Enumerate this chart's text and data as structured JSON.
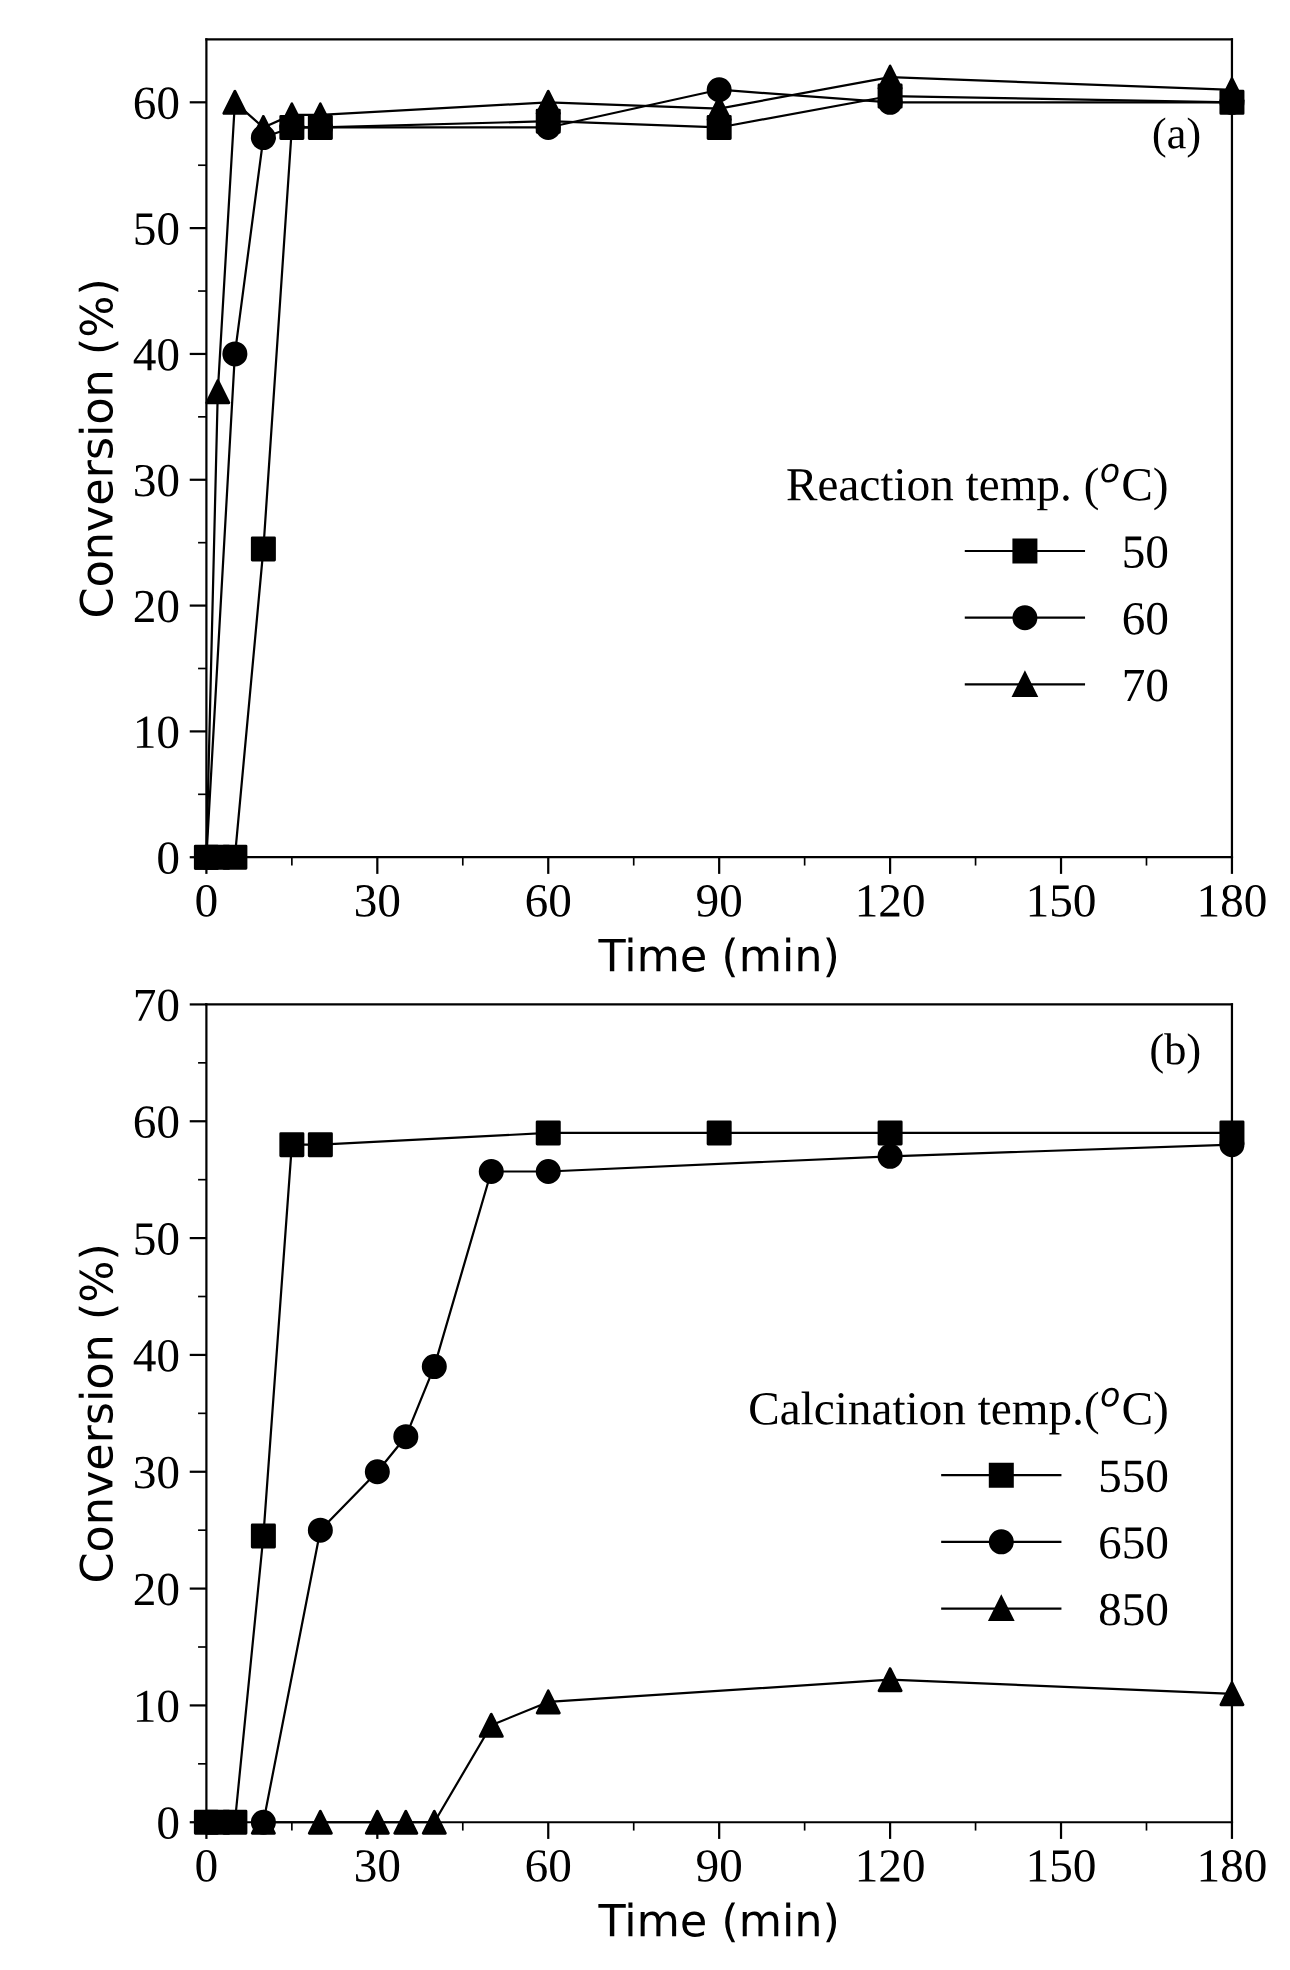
{
  "chart_data": [
    {
      "type": "line",
      "xlabel": "Time (min)",
      "ylabel": "Conversion (%)",
      "legend_title": "Reaction temp. ($^{o}$C)",
      "annotations": [
        "(a)"
      ],
      "legend": "right",
      "xlim": [
        0,
        180
      ],
      "ylim": [
        0,
        65
      ],
      "xticks": [
        0,
        30,
        60,
        90,
        120,
        150,
        180
      ],
      "yticks": [
        0,
        10,
        20,
        30,
        40,
        50,
        60
      ],
      "grid": false,
      "line_style": "solid",
      "series": [
        {
          "name": "50",
          "color": "#000000",
          "marker": "square",
          "x": [
            0,
            2,
            5,
            10,
            15,
            20,
            60,
            90,
            120,
            180
          ],
          "values": [
            0,
            0,
            0,
            24.5,
            58,
            58,
            58.5,
            58,
            60.5,
            60
          ]
        },
        {
          "name": "60",
          "color": "#000000",
          "marker": "circle",
          "x": [
            0,
            5,
            10,
            15,
            20,
            60,
            90,
            120,
            180
          ],
          "values": [
            0,
            40,
            57.2,
            58,
            58,
            58,
            61,
            60,
            60
          ]
        },
        {
          "name": "70",
          "color": "#000000",
          "marker": "triangle",
          "x": [
            0,
            2,
            5,
            10,
            15,
            20,
            60,
            90,
            120,
            180
          ],
          "values": [
            0,
            37,
            60,
            58,
            59,
            59,
            60,
            59.5,
            62,
            61
          ]
        }
      ]
    },
    {
      "type": "line",
      "xlabel": "Time (min)",
      "ylabel": "Conversion (%)",
      "legend_title": "Calcination temp.($^{o}$C)",
      "annotations": [
        "(b)"
      ],
      "legend": "right",
      "xlim": [
        0,
        180
      ],
      "ylim": [
        0,
        70
      ],
      "xticks": [
        0,
        30,
        60,
        90,
        120,
        150,
        180
      ],
      "yticks": [
        0,
        10,
        20,
        30,
        40,
        50,
        60,
        70
      ],
      "grid": false,
      "line_style": "solid",
      "series": [
        {
          "name": "550",
          "color": "#000000",
          "marker": "square",
          "x": [
            0,
            2,
            5,
            10,
            15,
            20,
            60,
            90,
            120,
            180
          ],
          "values": [
            0,
            0,
            0,
            24.5,
            58,
            58,
            59,
            59,
            59,
            59
          ]
        },
        {
          "name": "650",
          "color": "#000000",
          "marker": "circle",
          "x": [
            10,
            20,
            30,
            35,
            40,
            50,
            60,
            120,
            180
          ],
          "values": [
            0,
            25,
            30,
            33,
            39,
            55.7,
            55.7,
            57,
            58
          ]
        },
        {
          "name": "850",
          "color": "#000000",
          "marker": "triangle",
          "x": [
            10,
            20,
            30,
            35,
            40,
            50,
            60,
            120,
            180
          ],
          "values": [
            0,
            0,
            0,
            0,
            0,
            8.3,
            10.3,
            12.2,
            11
          ]
        }
      ]
    }
  ]
}
